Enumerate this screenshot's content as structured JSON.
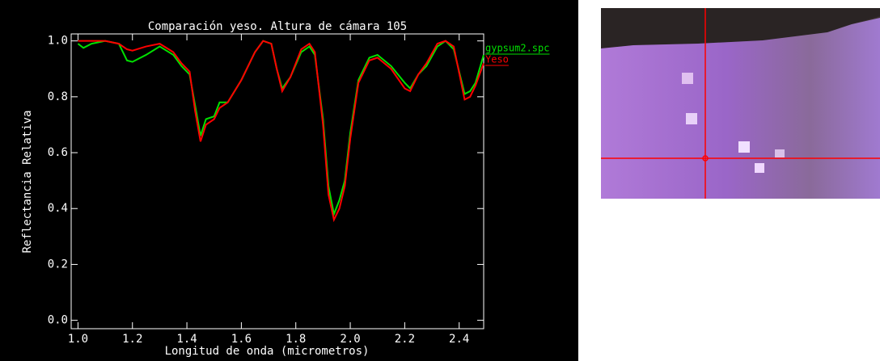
{
  "chart_data": {
    "type": "line",
    "title": "Comparación yeso. Altura de cámara 105",
    "x_label": "Longitud de onda (micrometros)",
    "y_label": "Reflectancia Relativa",
    "x": [
      1.0,
      1.02,
      1.05,
      1.1,
      1.15,
      1.18,
      1.2,
      1.25,
      1.3,
      1.35,
      1.38,
      1.41,
      1.43,
      1.45,
      1.47,
      1.5,
      1.52,
      1.55,
      1.6,
      1.65,
      1.68,
      1.71,
      1.73,
      1.75,
      1.78,
      1.82,
      1.85,
      1.87,
      1.9,
      1.92,
      1.94,
      1.96,
      1.98,
      2.0,
      2.03,
      2.07,
      2.1,
      2.15,
      2.2,
      2.22,
      2.25,
      2.28,
      2.32,
      2.35,
      2.38,
      2.42,
      2.44,
      2.46,
      2.49
    ],
    "series": [
      {
        "name": "gypsum2.spc",
        "color": "#00e000",
        "values": [
          0.99,
          0.975,
          0.99,
          1.0,
          0.99,
          0.93,
          0.925,
          0.95,
          0.98,
          0.95,
          0.91,
          0.88,
          0.77,
          0.66,
          0.72,
          0.73,
          0.78,
          0.78,
          0.86,
          0.96,
          1.0,
          0.99,
          0.9,
          0.83,
          0.87,
          0.96,
          0.98,
          0.95,
          0.72,
          0.48,
          0.38,
          0.43,
          0.5,
          0.67,
          0.86,
          0.94,
          0.95,
          0.91,
          0.85,
          0.83,
          0.88,
          0.91,
          0.98,
          1.0,
          0.97,
          0.81,
          0.82,
          0.85,
          0.95
        ]
      },
      {
        "name": "Yeso",
        "color": "#ff0000",
        "values": [
          1.0,
          1.0,
          1.0,
          1.0,
          0.99,
          0.97,
          0.965,
          0.98,
          0.99,
          0.96,
          0.92,
          0.89,
          0.75,
          0.64,
          0.7,
          0.72,
          0.76,
          0.78,
          0.86,
          0.96,
          1.0,
          0.99,
          0.9,
          0.82,
          0.87,
          0.97,
          0.99,
          0.96,
          0.7,
          0.45,
          0.36,
          0.4,
          0.48,
          0.65,
          0.85,
          0.93,
          0.94,
          0.9,
          0.83,
          0.82,
          0.88,
          0.92,
          0.99,
          1.0,
          0.98,
          0.79,
          0.8,
          0.84,
          0.92
        ]
      }
    ],
    "xlim": [
      0.975,
      2.49
    ],
    "ylim": [
      -0.03,
      1.025
    ],
    "xticks": [
      {
        "value": 1.0,
        "label": "1.0"
      },
      1.2,
      1.4,
      1.6,
      1.8,
      {
        "value": 2.0,
        "label": "2.0"
      },
      2.2,
      2.4
    ],
    "yticks": [
      {
        "value": 0.0,
        "label": "0.0"
      },
      0.2,
      0.4,
      0.6,
      0.8,
      {
        "value": 1.0,
        "label": "1.0"
      }
    ]
  }
}
